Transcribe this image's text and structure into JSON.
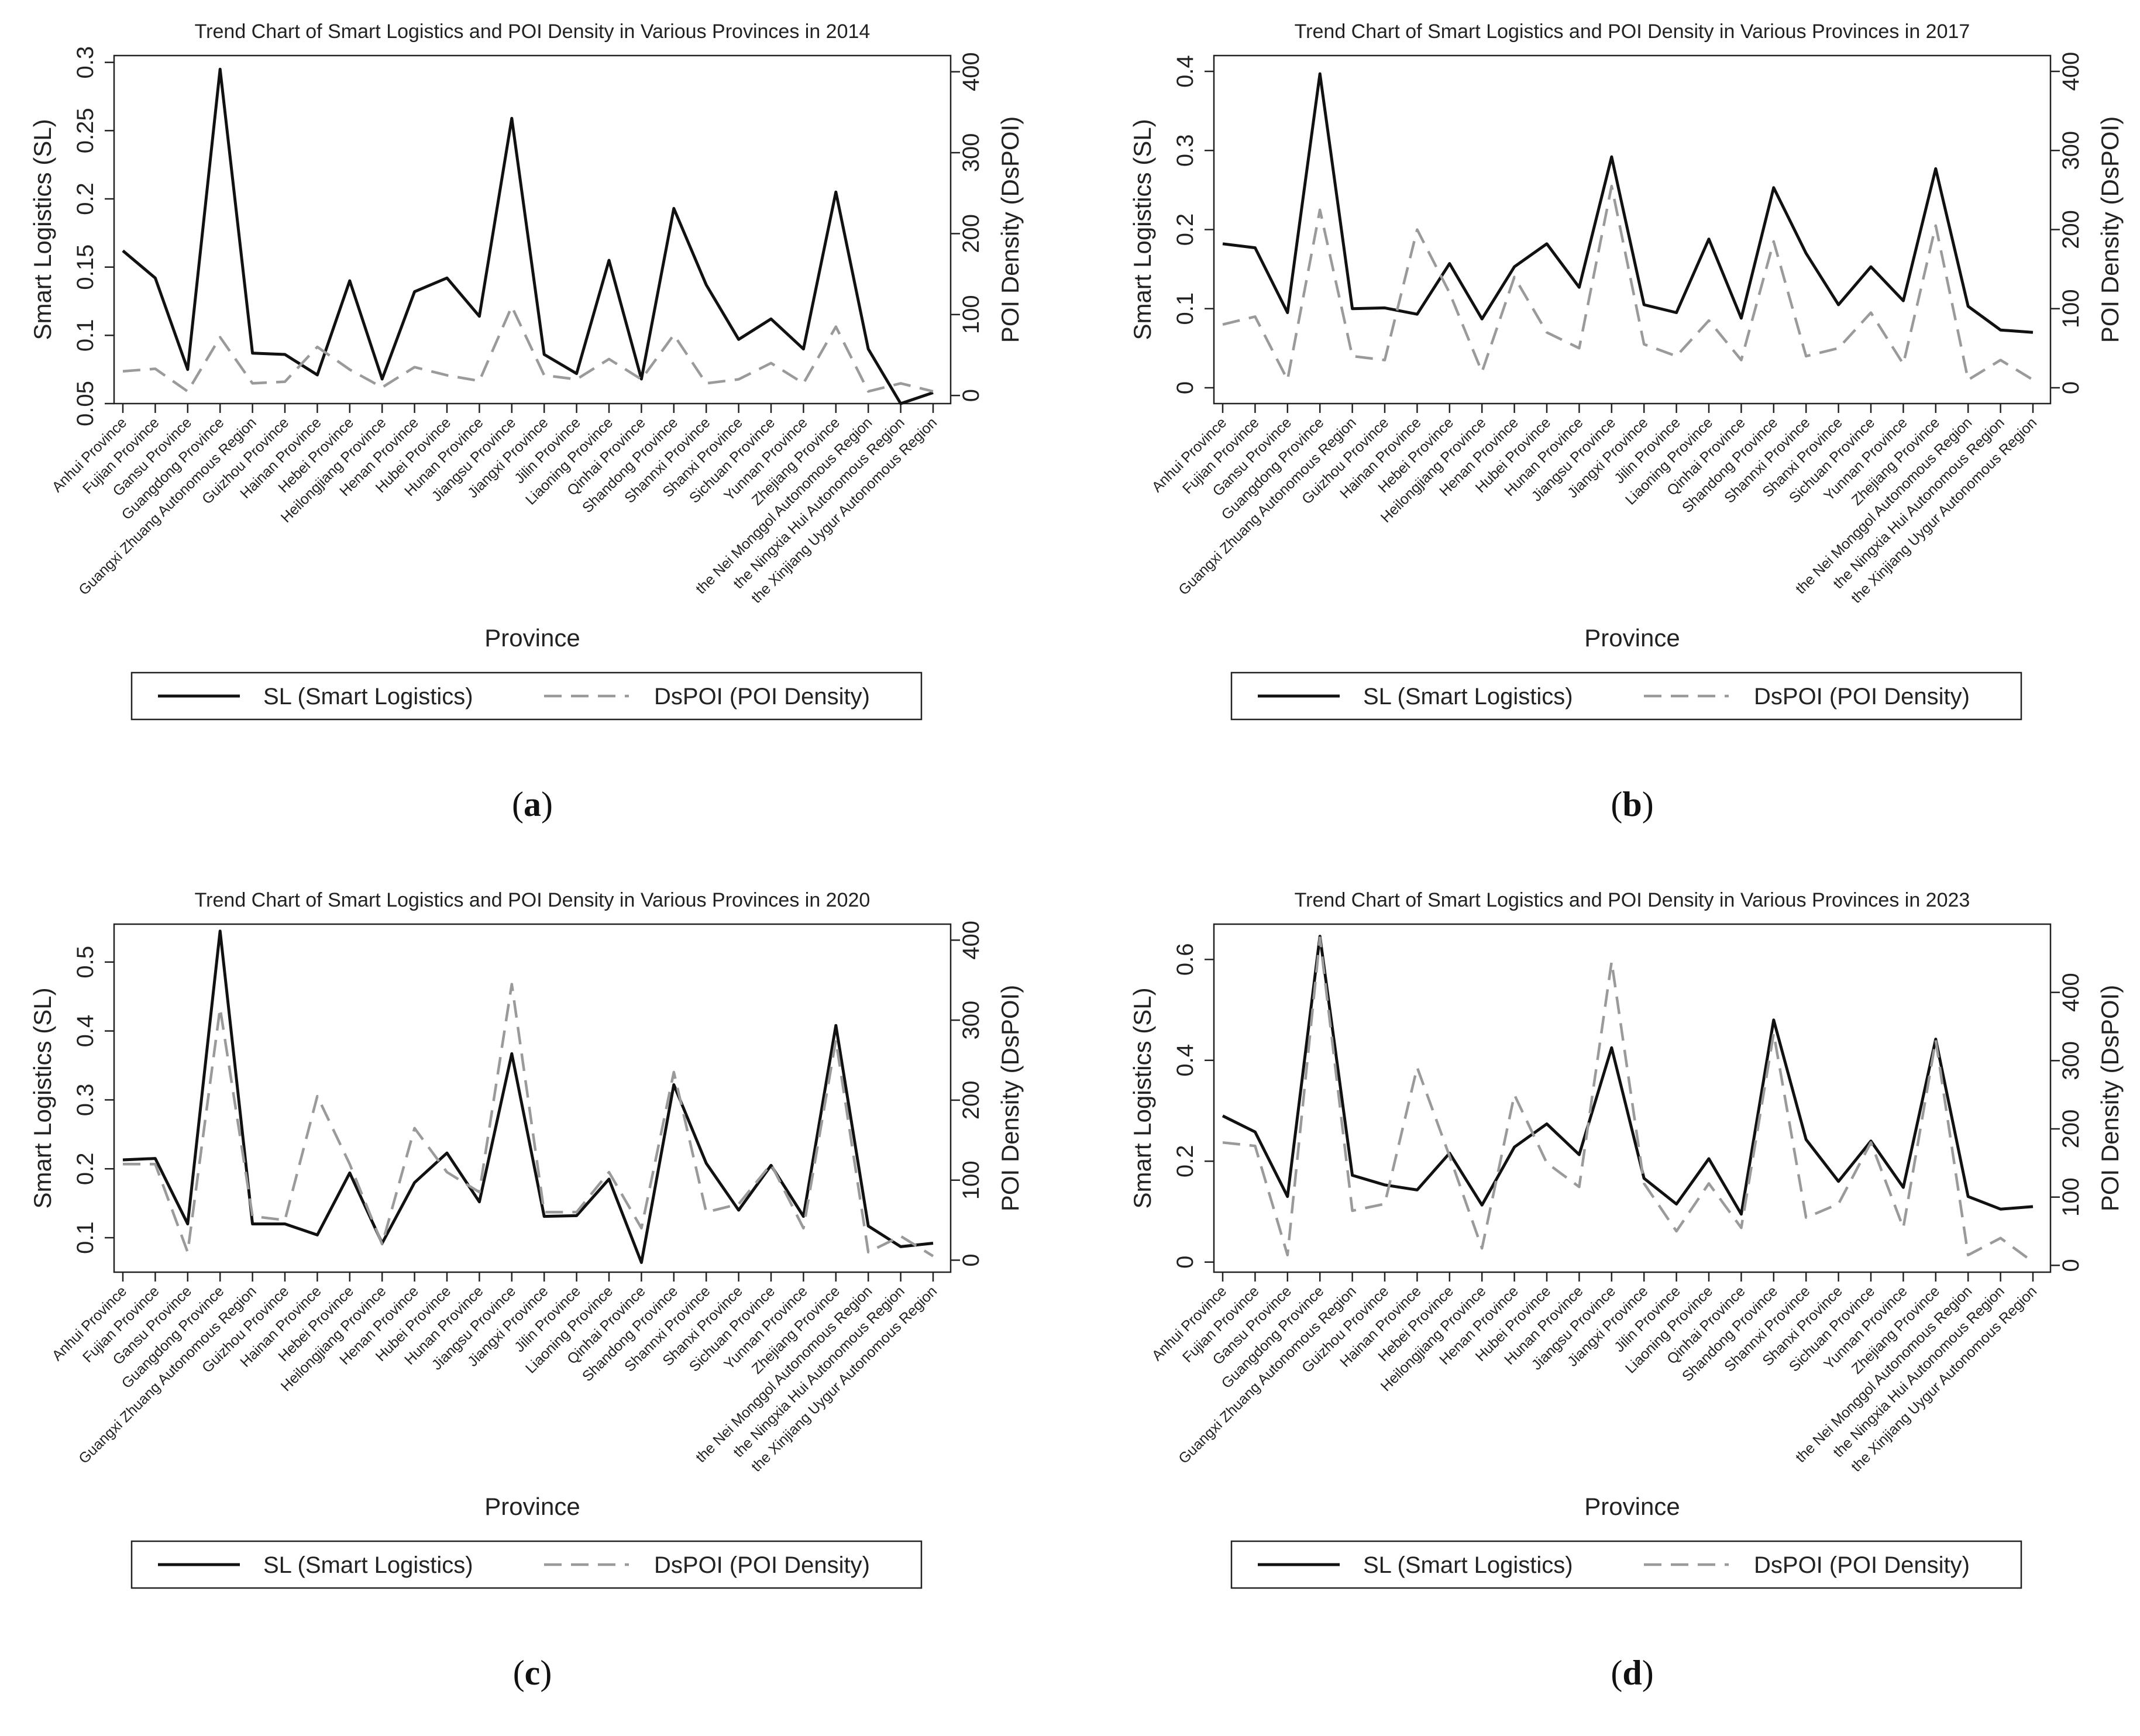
{
  "xlabel": "Province",
  "ylabel_left": "Smart Logistics (SL)",
  "ylabel_right": "POI Density (DsPOI)",
  "legend": {
    "sl": "SL (Smart Logistics)",
    "dspoi": "DsPOI (POI Density)",
    "placement": "bottom"
  },
  "colors": {
    "sl": "#111111",
    "dspoi": "#9a9a9a"
  },
  "categories": [
    "Anhui Province",
    "Fujian Province",
    "Gansu Province",
    "Guangdong Province",
    "Guangxi Zhuang Autonomous Region",
    "Guizhou Province",
    "Hainan Province",
    "Hebei Province",
    "Heilongjiang Province",
    "Henan Province",
    "Hubei Province",
    "Hunan Province",
    "Jiangsu Province",
    "Jiangxi Province",
    "Jilin Province",
    "Liaoning Province",
    "Qinhai Province",
    "Shandong Province",
    "Shannxi Province",
    "Shanxi Province",
    "Sichuan Province",
    "Yunnan Province",
    "Zhejiang Province",
    "the Nei Monggol Autonomous Region",
    "the Ningxia Hui Autonomous Region",
    "the Xinjiang Uygur Autonomous Region"
  ],
  "chart_data": [
    {
      "type": "line",
      "title": "Trend Chart of Smart Logistics and POI Density in Various Provinces in 2014",
      "panel_label": "a",
      "ylim_left": [
        0.05,
        0.305
      ],
      "yticks_left": [
        0.05,
        0.1,
        0.15,
        0.2,
        0.25,
        0.3
      ],
      "ytick_labels_left": [
        "0.05",
        "0.1",
        "0.15",
        "0.2",
        "0.25",
        "0.3"
      ],
      "ylim_right": [
        -10,
        420
      ],
      "yticks_right": [
        0,
        100,
        200,
        300,
        400
      ],
      "series": [
        {
          "name": "SL (Smart Logistics)",
          "axis": "left",
          "values": [
            0.162,
            0.142,
            0.075,
            0.295,
            0.087,
            0.086,
            0.071,
            0.14,
            0.068,
            0.132,
            0.142,
            0.114,
            0.259,
            0.086,
            0.072,
            0.155,
            0.068,
            0.193,
            0.137,
            0.097,
            0.112,
            0.09,
            0.205,
            0.09,
            0.05,
            0.058
          ]
        },
        {
          "name": "DsPOI (POI Density)",
          "axis": "right",
          "values": [
            30,
            33,
            5,
            72,
            15,
            17,
            60,
            32,
            10,
            35,
            25,
            18,
            110,
            25,
            20,
            45,
            20,
            75,
            15,
            20,
            40,
            15,
            85,
            5,
            15,
            5
          ]
        }
      ]
    },
    {
      "type": "line",
      "title": "Trend Chart of Smart Logistics and POI Density in Various Provinces in 2017",
      "panel_label": "b",
      "ylim_left": [
        -0.02,
        0.42
      ],
      "yticks_left": [
        0,
        0.1,
        0.2,
        0.3,
        0.4
      ],
      "ytick_labels_left": [
        "0",
        "0.1",
        "0.2",
        "0.3",
        "0.4"
      ],
      "ylim_right": [
        -20,
        420
      ],
      "yticks_right": [
        0,
        100,
        200,
        300,
        400
      ],
      "series": [
        {
          "name": "SL (Smart Logistics)",
          "axis": "left",
          "values": [
            0.182,
            0.177,
            0.095,
            0.397,
            0.1,
            0.101,
            0.093,
            0.157,
            0.087,
            0.153,
            0.182,
            0.127,
            0.292,
            0.105,
            0.095,
            0.188,
            0.088,
            0.253,
            0.17,
            0.105,
            0.153,
            0.11,
            0.277,
            0.103,
            0.073,
            0.07
          ]
        },
        {
          "name": "DsPOI (POI Density)",
          "axis": "right",
          "values": [
            80,
            90,
            10,
            225,
            40,
            35,
            200,
            120,
            20,
            140,
            70,
            50,
            255,
            55,
            40,
            85,
            35,
            185,
            40,
            50,
            95,
            30,
            205,
            10,
            35,
            10
          ]
        }
      ]
    },
    {
      "type": "line",
      "title": "Trend Chart of Smart Logistics and POI Density in Various Provinces in 2020",
      "panel_label": "c",
      "ylim_left": [
        0.05,
        0.555
      ],
      "yticks_left": [
        0.1,
        0.2,
        0.3,
        0.4,
        0.5
      ],
      "ytick_labels_left": [
        "0.1",
        "0.2",
        "0.3",
        "0.4",
        "0.5"
      ],
      "ylim_right": [
        -15,
        420
      ],
      "yticks_right": [
        0,
        100,
        200,
        300,
        400
      ],
      "series": [
        {
          "name": "SL (Smart Logistics)",
          "axis": "left",
          "values": [
            0.213,
            0.215,
            0.12,
            0.545,
            0.12,
            0.12,
            0.104,
            0.194,
            0.092,
            0.18,
            0.223,
            0.152,
            0.367,
            0.131,
            0.132,
            0.185,
            0.064,
            0.322,
            0.208,
            0.14,
            0.205,
            0.131,
            0.408,
            0.117,
            0.087,
            0.092
          ]
        },
        {
          "name": "DsPOI (POI Density)",
          "axis": "right",
          "values": [
            120,
            120,
            10,
            315,
            55,
            50,
            205,
            120,
            20,
            165,
            110,
            85,
            345,
            60,
            60,
            110,
            40,
            235,
            60,
            70,
            120,
            40,
            275,
            10,
            30,
            5
          ]
        }
      ]
    },
    {
      "type": "line",
      "title": "Trend Chart of Smart Logistics and POI Density in Various Provinces in 2023",
      "panel_label": "d",
      "ylim_left": [
        -0.02,
        0.67
      ],
      "yticks_left": [
        0,
        0.2,
        0.4,
        0.6
      ],
      "ytick_labels_left": [
        "0",
        "0.2",
        "0.4",
        "0.6"
      ],
      "ylim_right": [
        -10,
        500
      ],
      "yticks_right": [
        0,
        100,
        200,
        300,
        400
      ],
      "series": [
        {
          "name": "SL (Smart Logistics)",
          "axis": "left",
          "values": [
            0.29,
            0.258,
            0.13,
            0.646,
            0.172,
            0.153,
            0.143,
            0.216,
            0.113,
            0.228,
            0.274,
            0.213,
            0.425,
            0.166,
            0.115,
            0.205,
            0.095,
            0.48,
            0.243,
            0.16,
            0.24,
            0.148,
            0.442,
            0.13,
            0.105,
            0.11
          ]
        },
        {
          "name": "DsPOI (POI Density)",
          "axis": "right",
          "values": [
            180,
            175,
            15,
            480,
            80,
            90,
            290,
            160,
            25,
            250,
            150,
            115,
            445,
            120,
            50,
            120,
            55,
            340,
            70,
            90,
            180,
            55,
            330,
            15,
            40,
            5
          ]
        }
      ]
    }
  ]
}
